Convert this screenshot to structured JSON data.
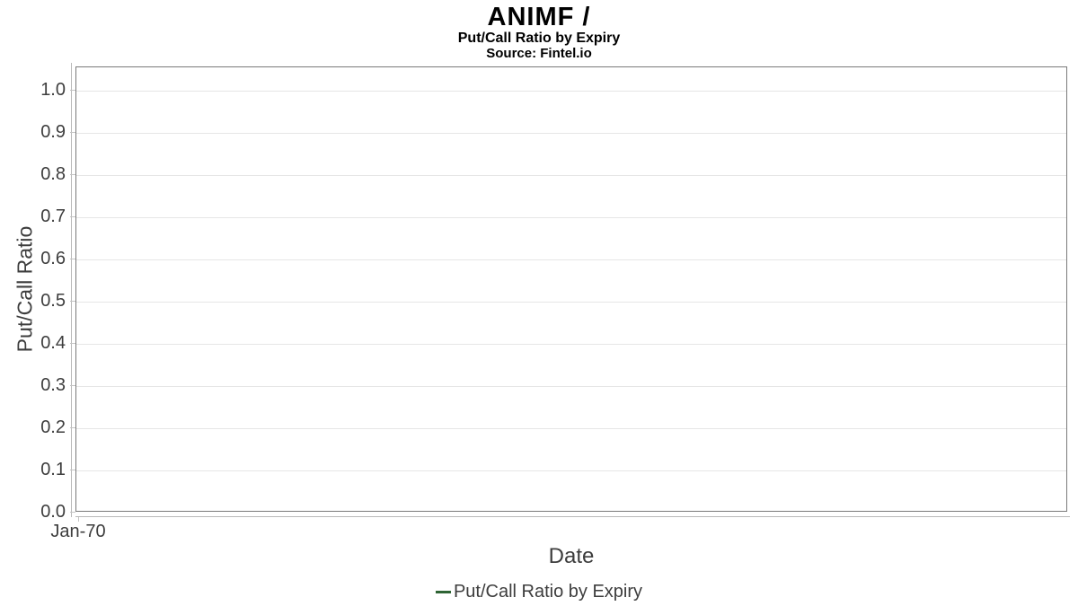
{
  "chart_data": {
    "type": "line",
    "title": "ANIMF /",
    "subtitle": "Put/Call Ratio by Expiry",
    "source": "Source: Fintel.io",
    "xlabel": "Date",
    "ylabel": "Put/Call Ratio",
    "x_ticks": [
      "Jan-70"
    ],
    "y_ticks": [
      "0.0",
      "0.1",
      "0.2",
      "0.3",
      "0.4",
      "0.5",
      "0.6",
      "0.7",
      "0.8",
      "0.9",
      "1.0"
    ],
    "ylim": [
      0,
      1.055
    ],
    "grid": "horizontal",
    "legend_position": "bottom-center",
    "legend": [
      "Put/Call Ratio by Expiry"
    ],
    "series": [
      {
        "name": "Put/Call Ratio by Expiry",
        "color": "#2e6434",
        "x": [],
        "values": []
      }
    ],
    "colors": {
      "frame": "#7a7a7a",
      "gridline": "#e6e6e6",
      "axis_line": "#b8b8b8",
      "tick": "#c4c4c4",
      "text": "#3d3d3d",
      "title_text": "#000000"
    }
  }
}
